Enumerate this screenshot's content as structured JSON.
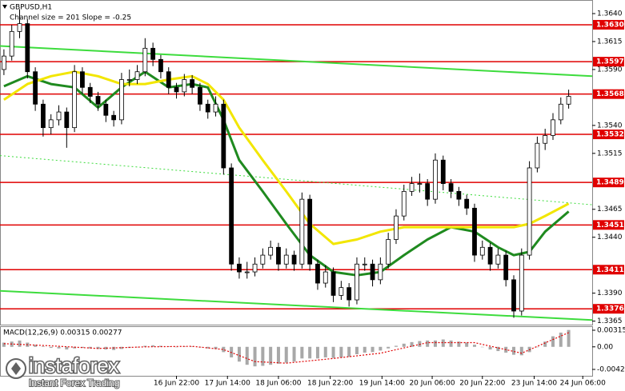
{
  "chart_data": [
    {
      "type": "candlestick",
      "title": "GBPUSD,H1",
      "subtitle": "Channel size = 201 Slope = -0.25",
      "xlim": [
        -0.5,
        75
      ],
      "xticks": [
        {
          "value": 22,
          "label": "16 Jun 22:00"
        },
        {
          "value": 28.5,
          "label": "17 Jun 14:00"
        },
        {
          "value": 35,
          "label": "18 Jun 06:00"
        },
        {
          "value": 41.6,
          "label": "18 Jun 22:00"
        },
        {
          "value": 48.2,
          "label": "19 Jun 14:00"
        },
        {
          "value": 54.6,
          "label": "20 Jun 06:00"
        },
        {
          "value": 61,
          "label": "20 Jun 22:00"
        },
        {
          "value": 67.6,
          "label": "23 Jun 14:00"
        },
        {
          "value": 73.8,
          "label": "24 Jun 06:00"
        }
      ],
      "ylim": [
        1.3364,
        1.365
      ],
      "yticks": [
        {
          "value": 1.364,
          "label": "1.3640"
        },
        1.3615,
        {
          "value": 1.359,
          "label": "1.3590"
        },
        {
          "value": 1.354,
          "label": "1.3540"
        },
        1.3515,
        1.3465,
        {
          "value": 1.344,
          "label": "1.3440"
        },
        {
          "value": 1.339,
          "label": "1.3390"
        },
        1.3365
      ],
      "candle_color": "#000000",
      "candles": [
        [
          1.359,
          1.3608,
          1.3585,
          1.3602
        ],
        [
          1.3602,
          1.363,
          1.3598,
          1.3624
        ],
        [
          1.3624,
          1.3644,
          1.3618,
          1.3631
        ],
        [
          1.3631,
          1.3635,
          1.3582,
          1.3588
        ],
        [
          1.3588,
          1.3592,
          1.3553,
          1.3559
        ],
        [
          1.3559,
          1.3563,
          1.353,
          1.3538
        ],
        [
          1.3538,
          1.355,
          1.3532,
          1.3545
        ],
        [
          1.3545,
          1.3558,
          1.354,
          1.3552
        ],
        [
          1.3552,
          1.3556,
          1.352,
          1.3538
        ],
        [
          1.3538,
          1.3594,
          1.3534,
          1.3588
        ],
        [
          1.3588,
          1.3592,
          1.3568,
          1.3574
        ],
        [
          1.3574,
          1.3578,
          1.356,
          1.3566
        ],
        [
          1.3566,
          1.357,
          1.3553,
          1.3559
        ],
        [
          1.3559,
          1.3563,
          1.3543,
          1.3549
        ],
        [
          1.3549,
          1.3553,
          1.3539,
          1.3545
        ],
        [
          1.3545,
          1.3587,
          1.3541,
          1.3581
        ],
        [
          1.3581,
          1.359,
          1.3575,
          1.3581
        ],
        [
          1.3581,
          1.3594,
          1.3577,
          1.3588
        ],
        [
          1.3588,
          1.3618,
          1.3584,
          1.3609
        ],
        [
          1.3609,
          1.3614,
          1.3593,
          1.3599
        ],
        [
          1.3599,
          1.3603,
          1.3582,
          1.3588
        ],
        [
          1.3588,
          1.3592,
          1.3568,
          1.3574
        ],
        [
          1.3574,
          1.3578,
          1.3564,
          1.357
        ],
        [
          1.357,
          1.3586,
          1.3566,
          1.3581
        ],
        [
          1.3581,
          1.3585,
          1.3568,
          1.3574
        ],
        [
          1.3574,
          1.3578,
          1.3553,
          1.3559
        ],
        [
          1.3559,
          1.3563,
          1.3546,
          1.3552
        ],
        [
          1.3552,
          1.3566,
          1.3548,
          1.3559
        ],
        [
          1.3559,
          1.3563,
          1.3496,
          1.3502
        ],
        [
          1.3502,
          1.3506,
          1.341,
          1.3416
        ],
        [
          1.3416,
          1.3422,
          1.3403,
          1.3409
        ],
        [
          1.3409,
          1.3418,
          1.3403,
          1.3409
        ],
        [
          1.3409,
          1.3422,
          1.3405,
          1.3416
        ],
        [
          1.3416,
          1.343,
          1.3412,
          1.3424
        ],
        [
          1.3424,
          1.3437,
          1.342,
          1.3431
        ],
        [
          1.3431,
          1.3435,
          1.341,
          1.3416
        ],
        [
          1.3416,
          1.343,
          1.3412,
          1.3424
        ],
        [
          1.3424,
          1.3428,
          1.341,
          1.3416
        ],
        [
          1.3416,
          1.348,
          1.3412,
          1.3474
        ],
        [
          1.3474,
          1.3478,
          1.341,
          1.3416
        ],
        [
          1.3416,
          1.342,
          1.3393,
          1.3399
        ],
        [
          1.3399,
          1.3415,
          1.3395,
          1.3409
        ],
        [
          1.3409,
          1.3413,
          1.3382,
          1.3388
        ],
        [
          1.3388,
          1.3401,
          1.3384,
          1.3395
        ],
        [
          1.3395,
          1.3399,
          1.3378,
          1.3384
        ],
        [
          1.3384,
          1.3422,
          1.338,
          1.3416
        ],
        [
          1.3416,
          1.3422,
          1.341,
          1.3416
        ],
        [
          1.3416,
          1.342,
          1.3396,
          1.3402
        ],
        [
          1.3402,
          1.3422,
          1.3398,
          1.3416
        ],
        [
          1.3416,
          1.3444,
          1.3412,
          1.3438
        ],
        [
          1.3438,
          1.3465,
          1.3434,
          1.3459
        ],
        [
          1.3459,
          1.3487,
          1.3455,
          1.3481
        ],
        [
          1.3481,
          1.3494,
          1.3477,
          1.3488
        ],
        [
          1.3488,
          1.3497,
          1.348,
          1.3488
        ],
        [
          1.3488,
          1.3492,
          1.3468,
          1.3474
        ],
        [
          1.3474,
          1.3515,
          1.347,
          1.3509
        ],
        [
          1.3509,
          1.3513,
          1.3482,
          1.3488
        ],
        [
          1.3488,
          1.3492,
          1.3475,
          1.3481
        ],
        [
          1.3481,
          1.3485,
          1.3468,
          1.3474
        ],
        [
          1.3474,
          1.3478,
          1.346,
          1.3466
        ],
        [
          1.3466,
          1.347,
          1.3418,
          1.3424
        ],
        [
          1.3424,
          1.3437,
          1.342,
          1.3431
        ],
        [
          1.3431,
          1.3435,
          1.341,
          1.3416
        ],
        [
          1.3416,
          1.343,
          1.3412,
          1.3424
        ],
        [
          1.3424,
          1.3428,
          1.3396,
          1.3402
        ],
        [
          1.3402,
          1.3406,
          1.3368,
          1.3374
        ],
        [
          1.3374,
          1.343,
          1.337,
          1.3424
        ],
        [
          1.3424,
          1.3508,
          1.342,
          1.3502
        ],
        [
          1.3502,
          1.353,
          1.3498,
          1.3524
        ],
        [
          1.3524,
          1.3537,
          1.3518,
          1.3531
        ],
        [
          1.3531,
          1.3551,
          1.3527,
          1.3545
        ],
        [
          1.3545,
          1.3565,
          1.3541,
          1.3559
        ],
        [
          1.3559,
          1.3572,
          1.3555,
          1.3566
        ]
      ],
      "moving_averages": [
        {
          "color": "#1f8a1f",
          "x": [
            0,
            3,
            6,
            9,
            12,
            15,
            18,
            21,
            24,
            26,
            28,
            30,
            33,
            36,
            39,
            42,
            45,
            48,
            51,
            54,
            57,
            60,
            63,
            65,
            67,
            69,
            72
          ],
          "values": [
            1.3575,
            1.3584,
            1.3577,
            1.3574,
            1.3556,
            1.3574,
            1.3588,
            1.3574,
            1.3577,
            1.3574,
            1.3545,
            1.3509,
            1.3481,
            1.3452,
            1.3424,
            1.3409,
            1.3406,
            1.3409,
            1.3424,
            1.3438,
            1.3449,
            1.3445,
            1.3431,
            1.3424,
            1.3427,
            1.3445,
            1.3463
          ]
        },
        {
          "color": "#f2e600",
          "x": [
            0,
            3,
            6,
            9,
            12,
            15,
            18,
            21,
            24,
            26,
            28,
            30,
            33,
            36,
            39,
            42,
            45,
            48,
            51,
            54,
            57,
            60,
            63,
            65,
            67,
            69,
            72
          ],
          "values": [
            1.3563,
            1.3577,
            1.3584,
            1.3588,
            1.3584,
            1.3577,
            1.3577,
            1.3581,
            1.3584,
            1.3577,
            1.3563,
            1.3538,
            1.3509,
            1.3481,
            1.3452,
            1.3434,
            1.3438,
            1.3445,
            1.3449,
            1.3449,
            1.3449,
            1.3449,
            1.3449,
            1.3449,
            1.3452,
            1.3459,
            1.347
          ]
        }
      ],
      "channel_lines": [
        {
          "color": "#3ddc3d",
          "dashed": false,
          "x": [
            -0.5,
            75
          ],
          "values": [
            1.3611,
            1.3584
          ]
        },
        {
          "color": "#3ddc3d",
          "dashed": true,
          "x": [
            -0.5,
            75
          ],
          "values": [
            1.3513,
            1.3469
          ]
        },
        {
          "color": "#3ddc3d",
          "dashed": false,
          "x": [
            -0.5,
            75
          ],
          "values": [
            1.3392,
            1.3366
          ]
        }
      ],
      "levels": {
        "color": "#e00000",
        "values": [
          1.363,
          1.3597,
          1.3568,
          1.3532,
          1.3489,
          1.3451,
          1.3411,
          1.3376
        ],
        "value_labels": [
          "1.3630",
          "1.3597",
          "1.3568",
          "1.3532",
          "1.3489",
          "1.3451",
          "1.3411",
          "1.3376"
        ]
      }
    },
    {
      "type": "macd",
      "label": "MACD(12,26,9) 0.00315 0.00277",
      "xlim": [
        -0.5,
        75
      ],
      "ylim": [
        -0.00428,
        0.00315
      ],
      "yticks": [
        0.00315,
        {
          "value": 0,
          "label": "0.00"
        },
        -0.00428
      ],
      "histogram": {
        "color": "#a8a8a8",
        "values": [
          0.0008,
          0.001,
          0.0012,
          0.0008,
          0.0004,
          0.0001,
          -0.0002,
          -0.0003,
          -0.0005,
          -0.0003,
          -0.0002,
          -0.0003,
          -0.0004,
          -0.0005,
          -0.0006,
          -0.0004,
          -0.0002,
          -0.0001,
          0.0002,
          0.0003,
          0.0002,
          0.0001,
          0.0,
          0.0001,
          0.0001,
          -0.0001,
          -0.0003,
          -0.0004,
          -0.001,
          -0.002,
          -0.0028,
          -0.0034,
          -0.0037,
          -0.0036,
          -0.0034,
          -0.0032,
          -0.003,
          -0.0028,
          -0.0022,
          -0.0022,
          -0.0022,
          -0.002,
          -0.0021,
          -0.002,
          -0.0019,
          -0.0014,
          -0.0011,
          -0.001,
          -0.0007,
          -0.0003,
          0.0002,
          0.0006,
          0.0009,
          0.0011,
          0.0012,
          0.0012,
          0.0014,
          0.0012,
          0.001,
          0.0008,
          0.0004,
          0.0,
          -0.0005,
          -0.0008,
          -0.0011,
          -0.0015,
          -0.0016,
          -0.001,
          0.0,
          0.001,
          0.002,
          0.0027,
          0.0032
        ]
      },
      "signal": {
        "color": "#e00000",
        "x": [
          0,
          6,
          12,
          18,
          24,
          28,
          32,
          36,
          42,
          48,
          54,
          60,
          66,
          72
        ],
        "values": [
          0.0006,
          0.0002,
          -0.0003,
          0.0,
          0.0001,
          -0.0005,
          -0.0028,
          -0.0031,
          -0.0022,
          -0.0012,
          0.0008,
          0.0008,
          -0.0012,
          0.0027
        ]
      }
    }
  ],
  "watermark": {
    "brand": "instaforex",
    "tagline": "Instant Forex Trading"
  }
}
